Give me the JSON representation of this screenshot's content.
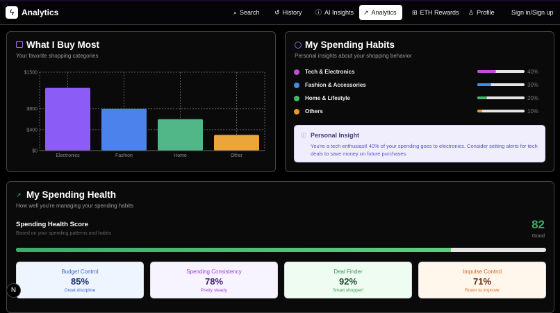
{
  "nav": {
    "brand": "Analytics",
    "items": [
      {
        "label": "Search",
        "icon": "search-icon"
      },
      {
        "label": "History",
        "icon": "history-icon"
      },
      {
        "label": "AI Insights",
        "icon": "brain-icon"
      },
      {
        "label": "Analytics",
        "icon": "trending-up-icon",
        "active": true
      },
      {
        "label": "ETH Rewards",
        "icon": "gift-icon"
      },
      {
        "label": "Profile",
        "icon": "user-icon"
      }
    ],
    "signin": "Sign in/Sign up"
  },
  "buy": {
    "title": "What I Buy Most",
    "subtitle": "Your favorite shopping categories"
  },
  "chart_data": {
    "type": "bar",
    "categories": [
      "Electronics",
      "Fashion",
      "Home",
      "Other"
    ],
    "values": [
      1200,
      800,
      600,
      300
    ],
    "colors": [
      "#8b5cf6",
      "#4b82ec",
      "#52b788",
      "#eba53d"
    ],
    "yticks": [
      "$0",
      "$400",
      "$800",
      "$1500"
    ],
    "ytick_values": [
      0,
      400,
      800,
      1500
    ],
    "ylim": [
      0,
      1500
    ],
    "grid": true
  },
  "habits": {
    "title": "My Spending Habits",
    "subtitle": "Personal insights about your shopping behavior",
    "items": [
      {
        "label": "Tech & Electronics",
        "pct": "40%",
        "value": 40,
        "color": "#c14fd6"
      },
      {
        "label": "Fashion & Accessories",
        "pct": "30%",
        "value": 30,
        "color": "#3f8fe8"
      },
      {
        "label": "Home & Lifestyle",
        "pct": "20%",
        "value": 20,
        "color": "#3dbb6a"
      },
      {
        "label": "Others",
        "pct": "10%",
        "value": 10,
        "color": "#ea9a1e"
      }
    ],
    "insight_title": "Personal Insight",
    "insight_text": "You're a tech enthusiast! 40% of your spending goes to electronics. Consider setting alerts for tech deals to save money on future purchases."
  },
  "health": {
    "title": "My Spending Health",
    "subtitle": "How well you're managing your spending habits",
    "score_title": "Spending Health Score",
    "score_sub": "Based on your spending patterns and habits",
    "score": "82",
    "score_value": 82,
    "score_label": "Good",
    "metrics": [
      {
        "title": "Budget Control",
        "value": "85%",
        "note": "Great discipline",
        "bg": "#eef5ff",
        "c1": "#3d63d6",
        "c2": "#1f2f7a"
      },
      {
        "title": "Spending Consistency",
        "value": "78%",
        "note": "Pretty steady",
        "bg": "#f7f3ff",
        "c1": "#9b3fe0",
        "c2": "#4a1f7a"
      },
      {
        "title": "Deal Finder",
        "value": "92%",
        "note": "Smart shopper!",
        "bg": "#effcf2",
        "c1": "#2f9a4f",
        "c2": "#1f4a2c"
      },
      {
        "title": "Impulse Control",
        "value": "71%",
        "note": "Room to improve",
        "bg": "#fff6ec",
        "c1": "#e0651c",
        "c2": "#6a2a12"
      }
    ]
  },
  "dev_badge": "N"
}
